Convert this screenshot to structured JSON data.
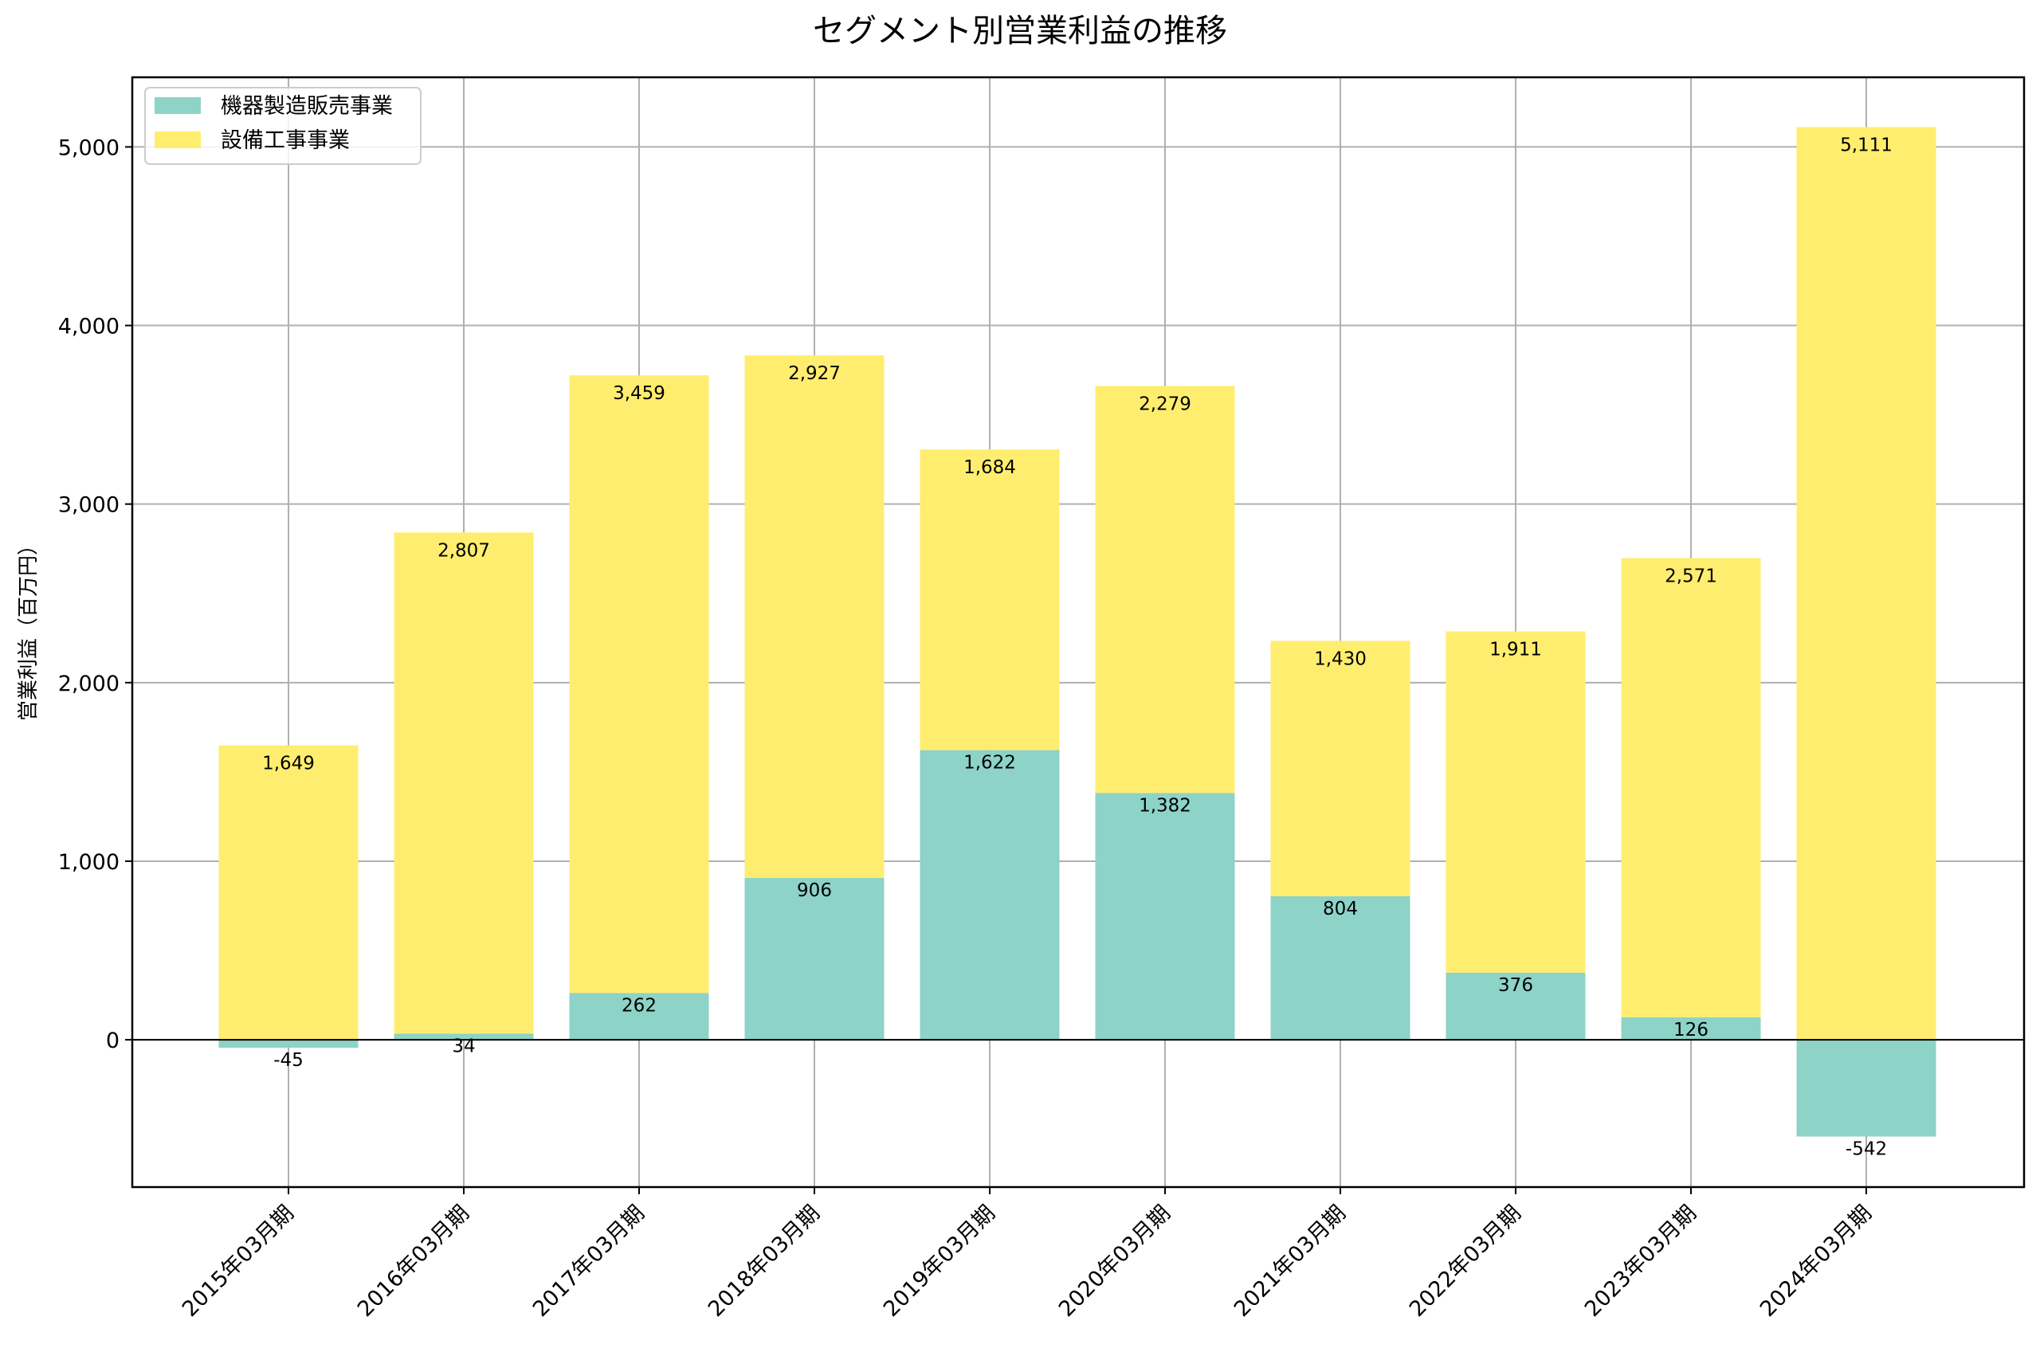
{
  "chart_data": {
    "type": "bar",
    "stacked": true,
    "title": "セグメント別営業利益の推移",
    "xlabel": "",
    "ylabel": "営業利益（百万円）",
    "ylim": [
      -825,
      5390
    ],
    "yticks": [
      0,
      1000,
      2000,
      3000,
      4000,
      5000
    ],
    "ytick_labels": [
      "0",
      "1,000",
      "2,000",
      "3,000",
      "4,000",
      "5,000"
    ],
    "grid": true,
    "legend_position": "top-left",
    "categories": [
      "2015年03月期",
      "2016年03月期",
      "2017年03月期",
      "2018年03月期",
      "2019年03月期",
      "2020年03月期",
      "2021年03月期",
      "2022年03月期",
      "2023年03月期",
      "2024年03月期"
    ],
    "series": [
      {
        "name": "機器製造販売事業",
        "color": "#8dd3c7",
        "values": [
          -45,
          34,
          262,
          906,
          1622,
          1382,
          804,
          376,
          126,
          -542
        ],
        "labels": [
          "-45",
          "34",
          "262",
          "906",
          "1,622",
          "1,382",
          "804",
          "376",
          "126",
          "-542"
        ]
      },
      {
        "name": "設備工事事業",
        "color": "#ffed6f",
        "values": [
          1649,
          2807,
          3459,
          2927,
          1684,
          2279,
          1430,
          1911,
          2571,
          5111
        ],
        "labels": [
          "1,649",
          "2,807",
          "3,459",
          "2,927",
          "1,684",
          "2,279",
          "1,430",
          "1,911",
          "2,571",
          "5,111"
        ]
      }
    ]
  }
}
